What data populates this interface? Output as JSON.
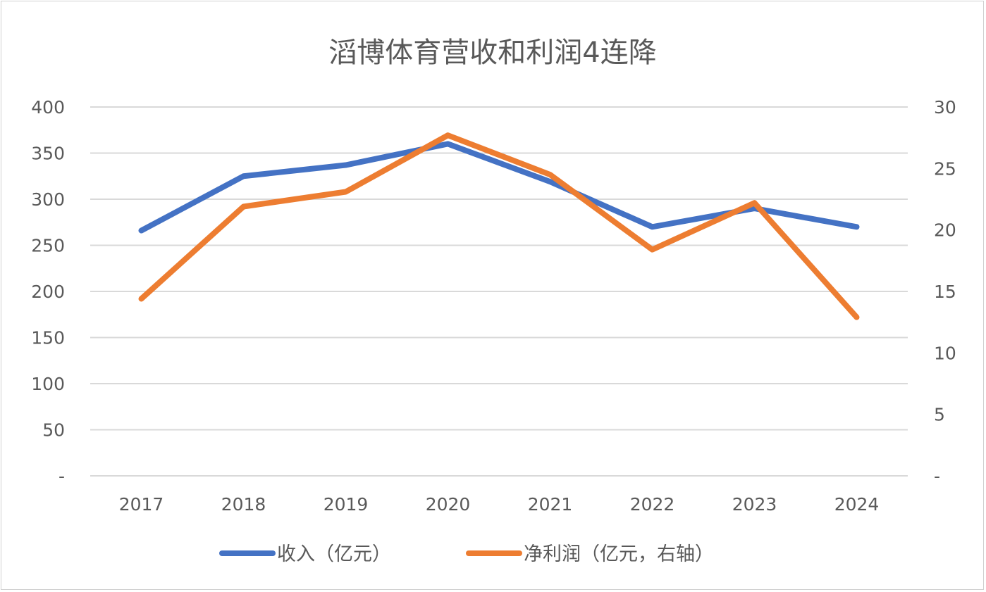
{
  "chart_data": {
    "type": "line",
    "title": "滔博体育营收和利润4连降",
    "categories": [
      "2017",
      "2018",
      "2019",
      "2020",
      "2021",
      "2022",
      "2023",
      "2024"
    ],
    "series": [
      {
        "name": "收入（亿元）",
        "axis": "left",
        "color": "#4472C4",
        "values": [
          266,
          325,
          337,
          360,
          319,
          270,
          290,
          270
        ]
      },
      {
        "name": "净利润（亿元，右轴）",
        "axis": "right",
        "color": "#ED7D31",
        "values": [
          14.4,
          21.9,
          23.1,
          27.7,
          24.5,
          18.4,
          22.2,
          12.9
        ]
      }
    ],
    "left_axis": {
      "ylim": [
        0,
        400
      ],
      "ticks": [
        "-",
        "50",
        "100",
        "150",
        "200",
        "250",
        "300",
        "350",
        "400"
      ]
    },
    "right_axis": {
      "ylim": [
        0,
        30
      ],
      "ticks": [
        "-",
        "5",
        "10",
        "15",
        "20",
        "25",
        "30"
      ]
    },
    "grid": true,
    "legend_position": "bottom"
  }
}
